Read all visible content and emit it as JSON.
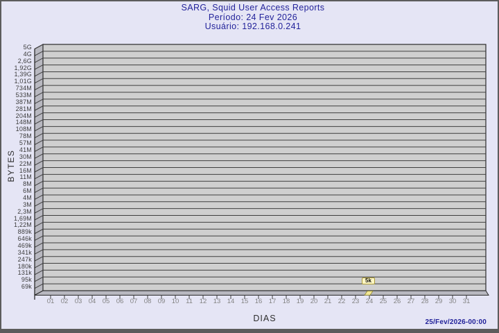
{
  "chart_data": {
    "type": "bar",
    "title": "SARG, Squid User Access Reports",
    "period": "Período: 24 Fev 2026",
    "user": "Usuário: 192.168.0.241",
    "xlabel": "DIAS",
    "ylabel": "BYTES",
    "y_scale": "log",
    "grid": true,
    "legend_position": "none",
    "categories": [
      "01",
      "02",
      "03",
      "04",
      "05",
      "06",
      "07",
      "08",
      "09",
      "10",
      "11",
      "12",
      "13",
      "14",
      "15",
      "16",
      "17",
      "18",
      "19",
      "20",
      "21",
      "22",
      "23",
      "24",
      "25",
      "26",
      "27",
      "28",
      "29",
      "30",
      "31"
    ],
    "values": [
      0,
      0,
      0,
      0,
      0,
      0,
      0,
      0,
      0,
      0,
      0,
      0,
      0,
      0,
      0,
      0,
      0,
      0,
      0,
      0,
      0,
      0,
      0,
      5000,
      0,
      0,
      0,
      0,
      0,
      0,
      0
    ],
    "annotation": {
      "category": "24",
      "label": "5k",
      "value_bytes": 5000
    },
    "y_tick_labels": [
      "5G",
      "4G",
      "2,6G",
      "1,92G",
      "1,39G",
      "1,01G",
      "734M",
      "533M",
      "387M",
      "281M",
      "204M",
      "148M",
      "108M",
      "78M",
      "57M",
      "41M",
      "30M",
      "22M",
      "16M",
      "11M",
      "8M",
      "6M",
      "4M",
      "3M",
      "2,3M",
      "1,69M",
      "1,22M",
      "889k",
      "646k",
      "469k",
      "341k",
      "247k",
      "180k",
      "131k",
      "95k",
      "69k"
    ]
  },
  "footer": {
    "timestamp": "25/Fev/2026-00:00"
  },
  "colors": {
    "background": "#e5e5f5",
    "border": "#5c5c5c",
    "title_text": "#22229a",
    "plot_fill": "#cfcfcf",
    "plot_side": "#b8b8c0",
    "plot_edge": "#2a2a2a",
    "grid_line": "#3f3f3f",
    "bar_fill": "#f2e795",
    "bar_edge": "#8f8730",
    "tooltip_bg": "#fdf6c3",
    "tooltip_border": "#ab9b3b",
    "y_label_text": "#3c3c3c",
    "x_label_text": "#828282"
  }
}
